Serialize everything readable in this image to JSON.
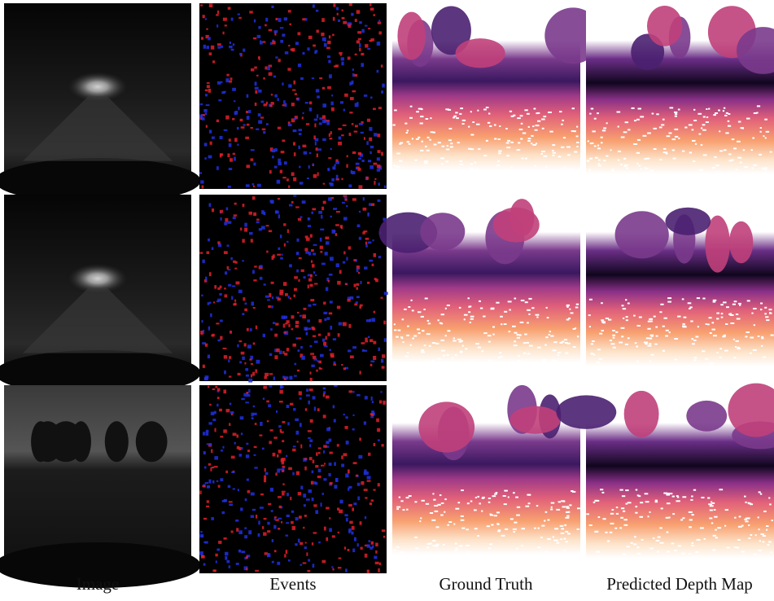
{
  "column_labels": [
    "Image",
    "Events",
    "Ground Truth",
    "Predicted Depth Map"
  ]
}
